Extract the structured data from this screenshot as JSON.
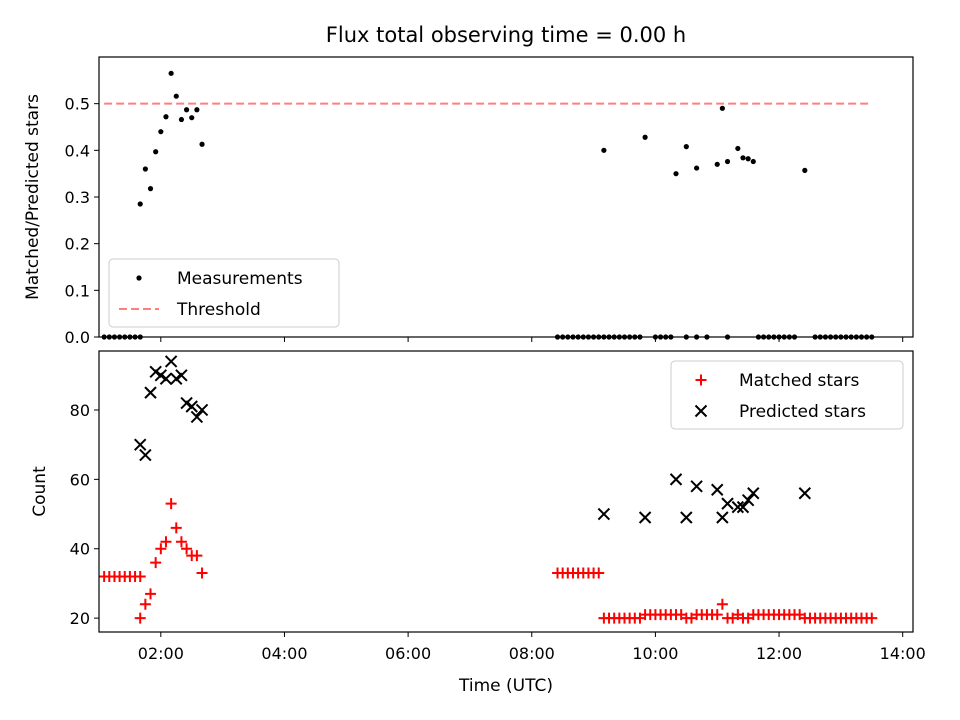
{
  "chart_data": [
    {
      "type": "scatter",
      "title": "Flux total observing time = 0.00 h",
      "xlabel": "",
      "ylabel": "Matched/Predicted stars",
      "xlim": [
        "01:00",
        "14:10"
      ],
      "ylim": [
        0,
        0.6
      ],
      "yticks": [
        0.0,
        0.1,
        0.2,
        0.3,
        0.4,
        0.5
      ],
      "yticklabels": [
        "0.0",
        "0.1",
        "0.2",
        "0.3",
        "0.4",
        "0.5"
      ],
      "xticks": [
        "02:00",
        "04:00",
        "06:00",
        "08:00",
        "10:00",
        "12:00",
        "14:00"
      ],
      "legend_position": "lower-left",
      "series": [
        {
          "name": "Measurements",
          "marker": "dot",
          "color": "#000000",
          "points": [
            [
              "01:05",
              0.0
            ],
            [
              "01:10",
              0.0
            ],
            [
              "01:15",
              0.0
            ],
            [
              "01:20",
              0.0
            ],
            [
              "01:25",
              0.0
            ],
            [
              "01:30",
              0.0
            ],
            [
              "01:35",
              0.0
            ],
            [
              "01:40",
              0.0
            ],
            [
              "01:40",
              0.285
            ],
            [
              "01:45",
              0.36
            ],
            [
              "01:50",
              0.318
            ],
            [
              "01:55",
              0.397
            ],
            [
              "02:00",
              0.44
            ],
            [
              "02:05",
              0.472
            ],
            [
              "02:10",
              0.565
            ],
            [
              "02:15",
              0.516
            ],
            [
              "02:20",
              0.466
            ],
            [
              "02:25",
              0.487
            ],
            [
              "02:30",
              0.47
            ],
            [
              "02:35",
              0.487
            ],
            [
              "02:40",
              0.413
            ],
            [
              "08:25",
              0.0
            ],
            [
              "08:30",
              0.0
            ],
            [
              "08:35",
              0.0
            ],
            [
              "08:40",
              0.0
            ],
            [
              "08:45",
              0.0
            ],
            [
              "08:50",
              0.0
            ],
            [
              "08:55",
              0.0
            ],
            [
              "09:00",
              0.0
            ],
            [
              "09:05",
              0.0
            ],
            [
              "09:10",
              0.0
            ],
            [
              "09:15",
              0.0
            ],
            [
              "09:20",
              0.0
            ],
            [
              "09:25",
              0.0
            ],
            [
              "09:30",
              0.0
            ],
            [
              "09:35",
              0.0
            ],
            [
              "09:40",
              0.0
            ],
            [
              "09:45",
              0.0
            ],
            [
              "10:00",
              0.0
            ],
            [
              "10:05",
              0.0
            ],
            [
              "10:10",
              0.0
            ],
            [
              "10:15",
              0.0
            ],
            [
              "10:30",
              0.0
            ],
            [
              "10:40",
              0.0
            ],
            [
              "10:50",
              0.0
            ],
            [
              "11:10",
              0.0
            ],
            [
              "11:40",
              0.0
            ],
            [
              "11:45",
              0.0
            ],
            [
              "11:50",
              0.0
            ],
            [
              "11:55",
              0.0
            ],
            [
              "12:00",
              0.0
            ],
            [
              "12:05",
              0.0
            ],
            [
              "12:10",
              0.0
            ],
            [
              "12:15",
              0.0
            ],
            [
              "12:35",
              0.0
            ],
            [
              "12:40",
              0.0
            ],
            [
              "12:45",
              0.0
            ],
            [
              "12:50",
              0.0
            ],
            [
              "12:55",
              0.0
            ],
            [
              "13:00",
              0.0
            ],
            [
              "13:05",
              0.0
            ],
            [
              "13:10",
              0.0
            ],
            [
              "13:15",
              0.0
            ],
            [
              "13:20",
              0.0
            ],
            [
              "13:25",
              0.0
            ],
            [
              "13:30",
              0.0
            ],
            [
              "09:10",
              0.4
            ],
            [
              "09:50",
              0.428
            ],
            [
              "10:20",
              0.35
            ],
            [
              "10:30",
              0.408
            ],
            [
              "10:40",
              0.362
            ],
            [
              "11:00",
              0.37
            ],
            [
              "11:05",
              0.49
            ],
            [
              "11:10",
              0.376
            ],
            [
              "11:20",
              0.404
            ],
            [
              "11:25",
              0.384
            ],
            [
              "11:30",
              0.382
            ],
            [
              "11:35",
              0.376
            ],
            [
              "12:25",
              0.357
            ]
          ]
        },
        {
          "name": "Threshold",
          "marker": "dashed-line",
          "color": "#ff7f7f",
          "points": [
            [
              "01:05",
              0.5
            ],
            [
              "13:30",
              0.5
            ]
          ]
        }
      ]
    },
    {
      "type": "scatter",
      "title": "",
      "xlabel": "Time (UTC)",
      "ylabel": "Count",
      "xlim": [
        "01:00",
        "14:10"
      ],
      "ylim": [
        16,
        97
      ],
      "yticks": [
        20,
        40,
        60,
        80
      ],
      "yticklabels": [
        "20",
        "40",
        "60",
        "80"
      ],
      "xticks": [
        "02:00",
        "04:00",
        "06:00",
        "08:00",
        "10:00",
        "12:00",
        "14:00"
      ],
      "xticklabels": [
        "02:00",
        "04:00",
        "06:00",
        "08:00",
        "10:00",
        "12:00",
        "14:00"
      ],
      "legend_position": "upper-right",
      "series": [
        {
          "name": "Matched stars",
          "marker": "plus",
          "color": "#ff0000",
          "points": [
            [
              "01:05",
              32
            ],
            [
              "01:10",
              32
            ],
            [
              "01:15",
              32
            ],
            [
              "01:20",
              32
            ],
            [
              "01:25",
              32
            ],
            [
              "01:30",
              32
            ],
            [
              "01:35",
              32
            ],
            [
              "01:40",
              32
            ],
            [
              "01:40",
              20
            ],
            [
              "01:45",
              24
            ],
            [
              "01:50",
              27
            ],
            [
              "01:55",
              36
            ],
            [
              "02:00",
              40
            ],
            [
              "02:05",
              42
            ],
            [
              "02:10",
              53
            ],
            [
              "02:15",
              46
            ],
            [
              "02:20",
              42
            ],
            [
              "02:25",
              40
            ],
            [
              "02:30",
              38
            ],
            [
              "02:35",
              38
            ],
            [
              "02:40",
              33
            ],
            [
              "08:25",
              33
            ],
            [
              "08:30",
              33
            ],
            [
              "08:35",
              33
            ],
            [
              "08:40",
              33
            ],
            [
              "08:45",
              33
            ],
            [
              "08:50",
              33
            ],
            [
              "08:55",
              33
            ],
            [
              "09:00",
              33
            ],
            [
              "09:05",
              33
            ],
            [
              "09:10",
              20
            ],
            [
              "09:15",
              20
            ],
            [
              "09:20",
              20
            ],
            [
              "09:25",
              20
            ],
            [
              "09:30",
              20
            ],
            [
              "09:35",
              20
            ],
            [
              "09:40",
              20
            ],
            [
              "09:45",
              20
            ],
            [
              "09:50",
              21
            ],
            [
              "09:55",
              21
            ],
            [
              "10:00",
              21
            ],
            [
              "10:05",
              21
            ],
            [
              "10:10",
              21
            ],
            [
              "10:15",
              21
            ],
            [
              "10:20",
              21
            ],
            [
              "10:25",
              21
            ],
            [
              "10:30",
              20
            ],
            [
              "10:35",
              20
            ],
            [
              "10:40",
              21
            ],
            [
              "10:45",
              21
            ],
            [
              "10:50",
              21
            ],
            [
              "10:55",
              21
            ],
            [
              "11:00",
              21
            ],
            [
              "11:05",
              24
            ],
            [
              "11:10",
              20
            ],
            [
              "11:15",
              20
            ],
            [
              "11:20",
              21
            ],
            [
              "11:25",
              20
            ],
            [
              "11:30",
              20
            ],
            [
              "11:35",
              21
            ],
            [
              "11:40",
              21
            ],
            [
              "11:45",
              21
            ],
            [
              "11:50",
              21
            ],
            [
              "11:55",
              21
            ],
            [
              "12:00",
              21
            ],
            [
              "12:05",
              21
            ],
            [
              "12:10",
              21
            ],
            [
              "12:15",
              21
            ],
            [
              "12:20",
              21
            ],
            [
              "12:25",
              20
            ],
            [
              "12:30",
              20
            ],
            [
              "12:35",
              20
            ],
            [
              "12:40",
              20
            ],
            [
              "12:45",
              20
            ],
            [
              "12:50",
              20
            ],
            [
              "12:55",
              20
            ],
            [
              "13:00",
              20
            ],
            [
              "13:05",
              20
            ],
            [
              "13:10",
              20
            ],
            [
              "13:15",
              20
            ],
            [
              "13:20",
              20
            ],
            [
              "13:25",
              20
            ],
            [
              "13:30",
              20
            ]
          ]
        },
        {
          "name": "Predicted stars",
          "marker": "x",
          "color": "#000000",
          "points": [
            [
              "01:40",
              70
            ],
            [
              "01:45",
              67
            ],
            [
              "01:50",
              85
            ],
            [
              "01:55",
              91
            ],
            [
              "02:00",
              90
            ],
            [
              "02:05",
              89
            ],
            [
              "02:10",
              94
            ],
            [
              "02:15",
              89
            ],
            [
              "02:20",
              90
            ],
            [
              "02:25",
              82
            ],
            [
              "02:30",
              81
            ],
            [
              "02:35",
              78
            ],
            [
              "02:40",
              80
            ],
            [
              "09:10",
              50
            ],
            [
              "09:50",
              49
            ],
            [
              "10:20",
              60
            ],
            [
              "10:30",
              49
            ],
            [
              "10:40",
              58
            ],
            [
              "11:00",
              57
            ],
            [
              "11:05",
              49
            ],
            [
              "11:10",
              53
            ],
            [
              "11:20",
              52
            ],
            [
              "11:25",
              52
            ],
            [
              "11:30",
              54
            ],
            [
              "11:35",
              56
            ],
            [
              "12:25",
              56
            ]
          ]
        }
      ]
    }
  ]
}
